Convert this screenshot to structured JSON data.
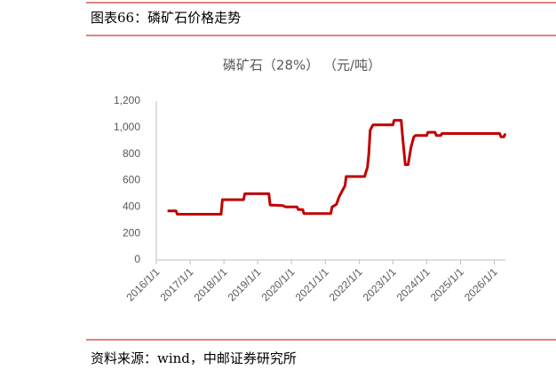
{
  "figure_title": "图表66：磷矿石价格走势",
  "source": "资料来源：wind，中邮证券研究所",
  "chart_data": {
    "type": "line",
    "title": "磷矿石（28%） （元/吨）",
    "x": [
      "2016/5/1",
      "2016/8/1",
      "2016/8/15",
      "2017/12/1",
      "2017/12/15",
      "2018/8/1",
      "2018/8/15",
      "2019/5/1",
      "2019/5/15",
      "2019/10/1",
      "2019/11/1",
      "2020/3/1",
      "2020/3/15",
      "2020/5/1",
      "2020/5/15",
      "2021/3/1",
      "2021/3/15",
      "2021/5/1",
      "2021/6/1",
      "2021/7/1",
      "2021/8/1",
      "2021/8/15",
      "2022/3/1",
      "2022/4/1",
      "2022/4/15",
      "2022/5/1",
      "2022/5/15",
      "2022/6/1",
      "2023/1/1",
      "2023/1/15",
      "2023/4/1",
      "2023/4/20",
      "2023/5/15",
      "2023/6/15",
      "2023/7/15",
      "2023/8/15",
      "2023/9/1",
      "2024/1/1",
      "2024/1/15",
      "2024/4/1",
      "2024/4/15",
      "2024/6/1",
      "2024/6/15",
      "2026/3/1",
      "2026/3/15",
      "2026/4/15",
      "2026/5/1"
    ],
    "series": [
      {
        "name": "磷矿石（28%）",
        "color": "#c00000",
        "values": [
          370,
          370,
          345,
          345,
          455,
          455,
          500,
          500,
          415,
          410,
          400,
          400,
          380,
          380,
          350,
          350,
          400,
          420,
          480,
          520,
          560,
          630,
          630,
          700,
          800,
          980,
          1000,
          1020,
          1020,
          1055,
          1055,
          900,
          720,
          720,
          850,
          930,
          940,
          940,
          965,
          965,
          940,
          940,
          955,
          955,
          930,
          930,
          955
        ]
      }
    ],
    "xlim": [
      "2016/1/1",
      "2026/5/1"
    ],
    "xticks": [
      "2016/1/1",
      "2017/1/1",
      "2018/1/1",
      "2019/1/1",
      "2020/1/1",
      "2021/1/1",
      "2022/1/1",
      "2023/1/1",
      "2024/1/1",
      "2025/1/1",
      "2026/1/1"
    ],
    "ylim": [
      0,
      1200
    ],
    "yticks": [
      0,
      200,
      400,
      600,
      800,
      {
        "value": 1000,
        "label": "1,000"
      },
      {
        "value": 1200,
        "label": "1,200"
      }
    ],
    "grid": false
  }
}
